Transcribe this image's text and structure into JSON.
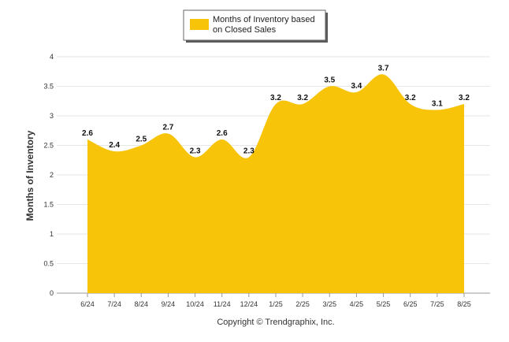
{
  "chart_data": {
    "type": "area",
    "categories": [
      "6/24",
      "7/24",
      "8/24",
      "9/24",
      "10/24",
      "11/24",
      "12/24",
      "1/25",
      "2/25",
      "3/25",
      "4/25",
      "5/25",
      "6/25",
      "7/25",
      "8/25"
    ],
    "series": [
      {
        "name": "Months of Inventory based on Closed Sales",
        "values": [
          2.6,
          2.4,
          2.5,
          2.7,
          2.3,
          2.6,
          2.3,
          3.2,
          3.2,
          3.5,
          3.4,
          3.7,
          3.2,
          3.1,
          3.2
        ],
        "color": "#f7c40a"
      }
    ],
    "data_labels": [
      "2.6",
      "2.4",
      "2.5",
      "2.7",
      "2.3",
      "2.6",
      "2.3",
      "3.2",
      "3.2",
      "3.5",
      "3.4",
      "3.7",
      "3.2",
      "3.1",
      "3.2"
    ],
    "ylabel": "Months of Inventory",
    "ylim": [
      0,
      4
    ],
    "yticks": [
      "0",
      "0.5",
      "1",
      "1.5",
      "2",
      "2.5",
      "3",
      "3.5",
      "4"
    ],
    "grid": true,
    "legend_position": "top-center"
  },
  "legend": {
    "line1": "Months of Inventory based",
    "line2": "on Closed Sales"
  },
  "footer": {
    "copyright": "Copyright © Trendgraphix, Inc."
  }
}
